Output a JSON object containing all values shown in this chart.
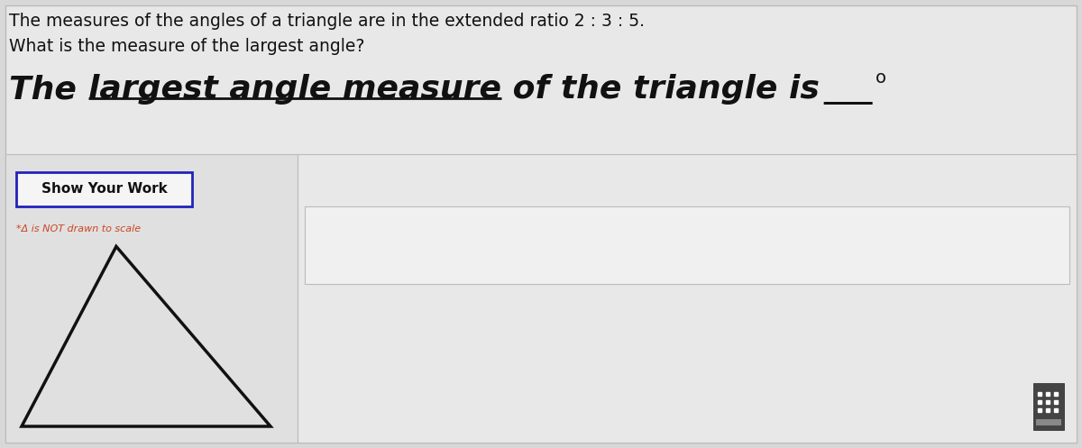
{
  "background_color": "#d8d8d8",
  "top_section_color": "#e8e8e8",
  "bottom_left_color": "#e0e0e0",
  "bottom_right_color": "#e8e8e8",
  "line1": "The measures of the angles of a triangle are in the extended ratio 2 : 3 : 5.",
  "line2": "What is the measure of the largest angle?",
  "bold_text_part1": "The ",
  "bold_text_underlined": "largest angle measure",
  "bold_text_part2": " of the triangle is",
  "blank_line": "___",
  "superscript": "o",
  "button_text": "Show Your Work",
  "footnote": "*Δ is NOT drawn to scale",
  "triangle_color": "#111111",
  "button_border_color": "#2222bb",
  "text_color": "#111111",
  "footnote_color": "#cc4422",
  "answer_box_bg": "#eeeeee",
  "answer_box_border": "#bbbbbb",
  "divider_line_color": "#aaaaaa",
  "calc_bg": "#444444",
  "line1_fontsize": 13.5,
  "line2_fontsize": 13.5,
  "bold_fontsize": 26,
  "button_fontsize": 11,
  "footnote_fontsize": 8
}
